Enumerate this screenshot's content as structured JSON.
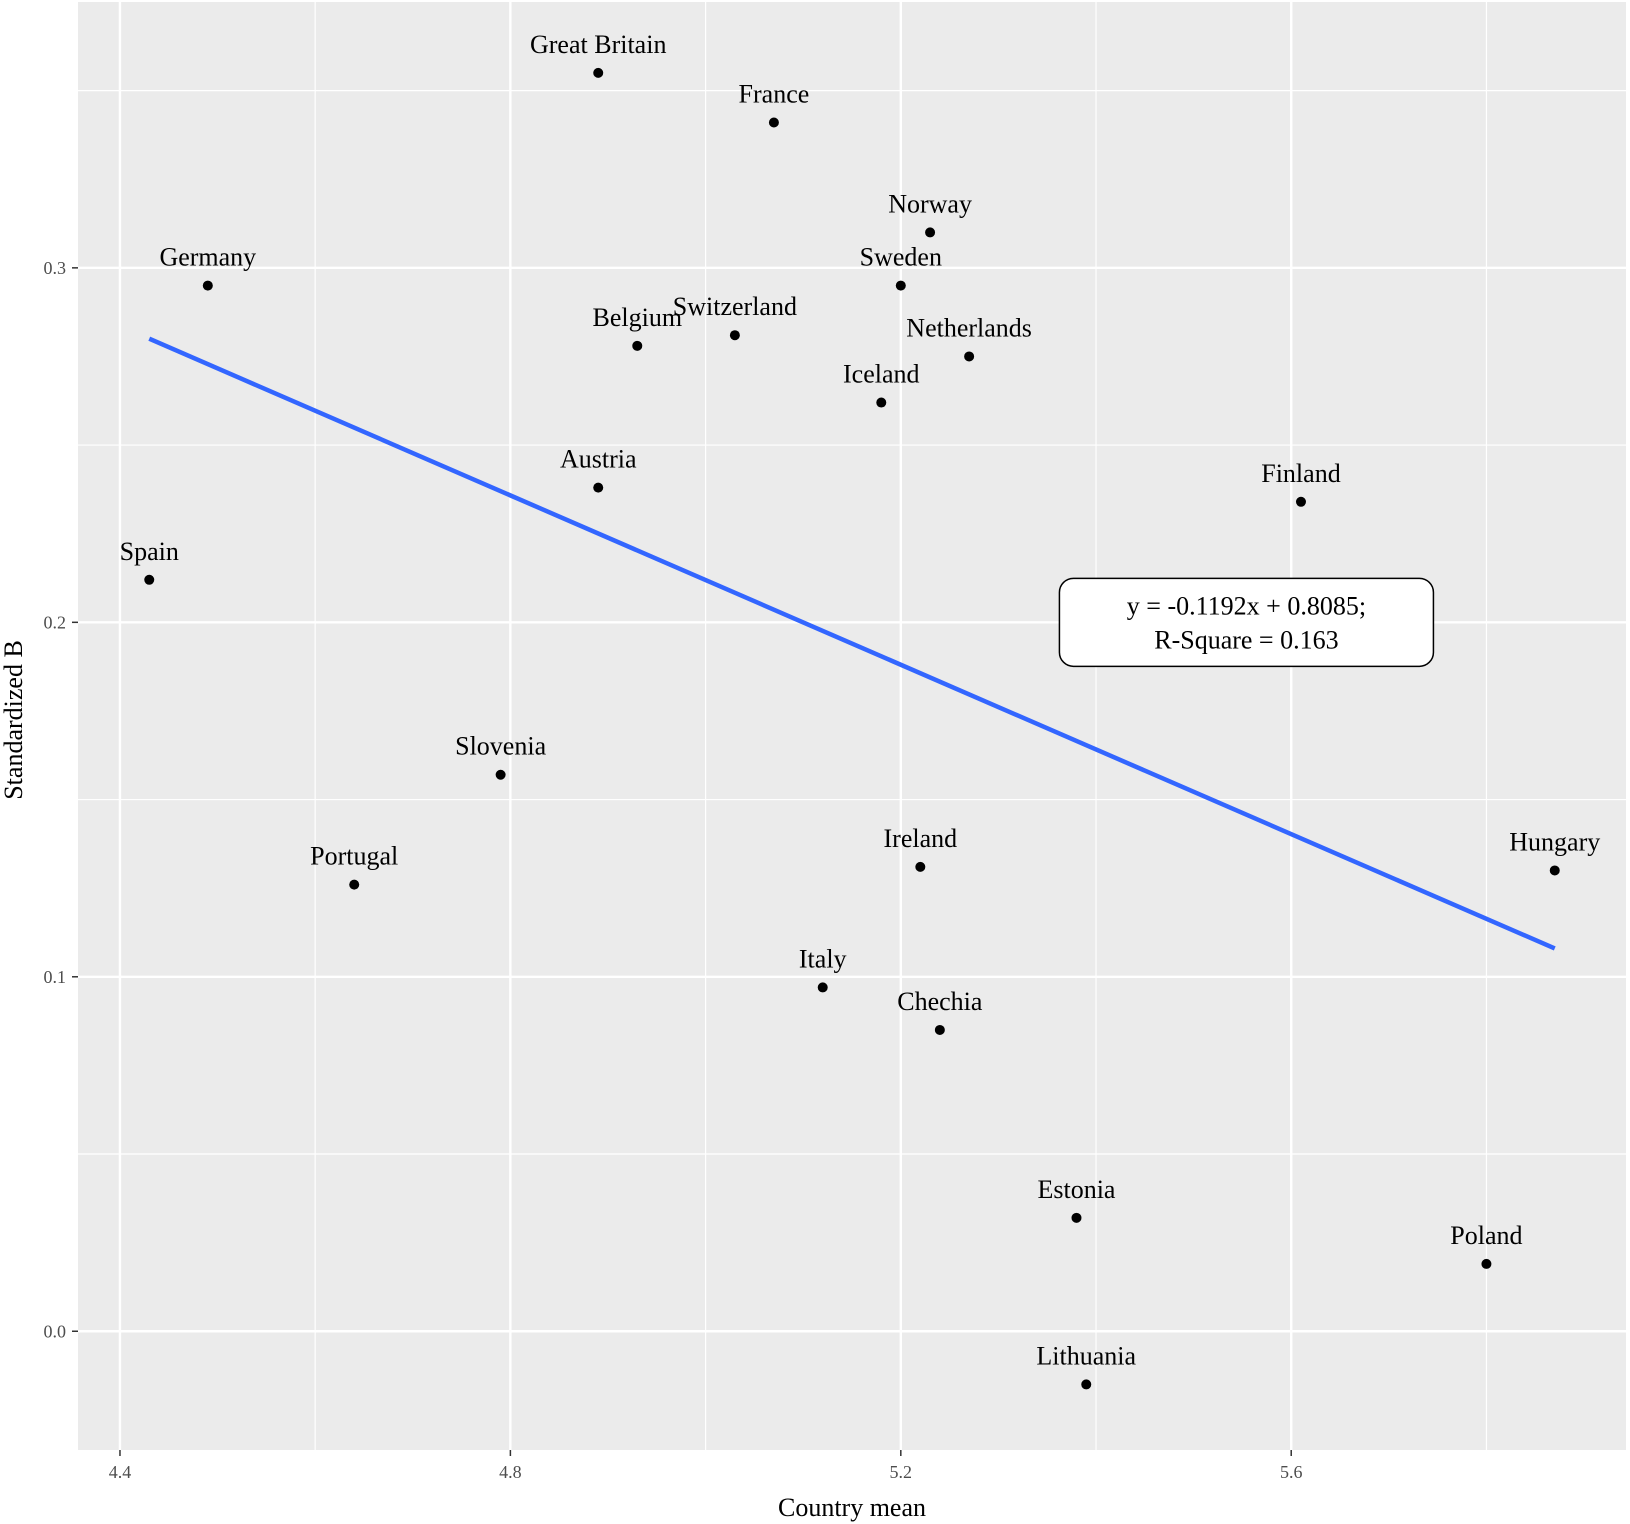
{
  "chart_data": {
    "type": "scatter",
    "xlabel": "Country mean",
    "ylabel": "Standardized B",
    "xlim": [
      4.357,
      5.943
    ],
    "ylim": [
      -0.0335,
      0.375
    ],
    "x_ticks": [
      4.4,
      4.8,
      5.2,
      5.6
    ],
    "x_tick_labels": [
      "4.4",
      "4.8",
      "5.2",
      "5.6"
    ],
    "y_ticks": [
      0.0,
      0.1,
      0.2,
      0.3
    ],
    "y_tick_labels": [
      "0.0",
      "0.1",
      "0.2",
      "0.3"
    ],
    "grid": true,
    "points": [
      {
        "label": "Great Britain",
        "x": 4.89,
        "y": 0.355
      },
      {
        "label": "France",
        "x": 5.07,
        "y": 0.341
      },
      {
        "label": "Norway",
        "x": 5.23,
        "y": 0.31
      },
      {
        "label": "Germany",
        "x": 4.49,
        "y": 0.295
      },
      {
        "label": "Sweden",
        "x": 5.2,
        "y": 0.295
      },
      {
        "label": "Belgium",
        "x": 4.93,
        "y": 0.278
      },
      {
        "label": "Switzerland",
        "x": 5.03,
        "y": 0.281
      },
      {
        "label": "Netherlands",
        "x": 5.27,
        "y": 0.275
      },
      {
        "label": "Iceland",
        "x": 5.18,
        "y": 0.262
      },
      {
        "label": "Austria",
        "x": 4.89,
        "y": 0.238
      },
      {
        "label": "Finland",
        "x": 5.61,
        "y": 0.234
      },
      {
        "label": "Spain",
        "x": 4.43,
        "y": 0.212
      },
      {
        "label": "Slovenia",
        "x": 4.79,
        "y": 0.157
      },
      {
        "label": "Portugal",
        "x": 4.64,
        "y": 0.126
      },
      {
        "label": "Ireland",
        "x": 5.22,
        "y": 0.131
      },
      {
        "label": "Hungary",
        "x": 5.87,
        "y": 0.13
      },
      {
        "label": "Italy",
        "x": 5.12,
        "y": 0.097
      },
      {
        "label": "Chechia",
        "x": 5.24,
        "y": 0.085
      },
      {
        "label": "Estonia",
        "x": 5.38,
        "y": 0.032
      },
      {
        "label": "Poland",
        "x": 5.8,
        "y": 0.019
      },
      {
        "label": "Lithuania",
        "x": 5.39,
        "y": -0.015
      }
    ],
    "trend_line": {
      "x": [
        4.43,
        5.87
      ],
      "y": [
        0.28,
        0.108
      ],
      "color": "#3366FF"
    },
    "annotation": {
      "lines": [
        "y = -0.1192x + 0.8085;",
        "R-Square = 0.163"
      ],
      "x": 5.8,
      "y": 0.2
    },
    "colors": {
      "panel": "#EBEBEB",
      "grid": "#FFFFFF",
      "point": "#000000",
      "line": "#3366FF"
    }
  }
}
